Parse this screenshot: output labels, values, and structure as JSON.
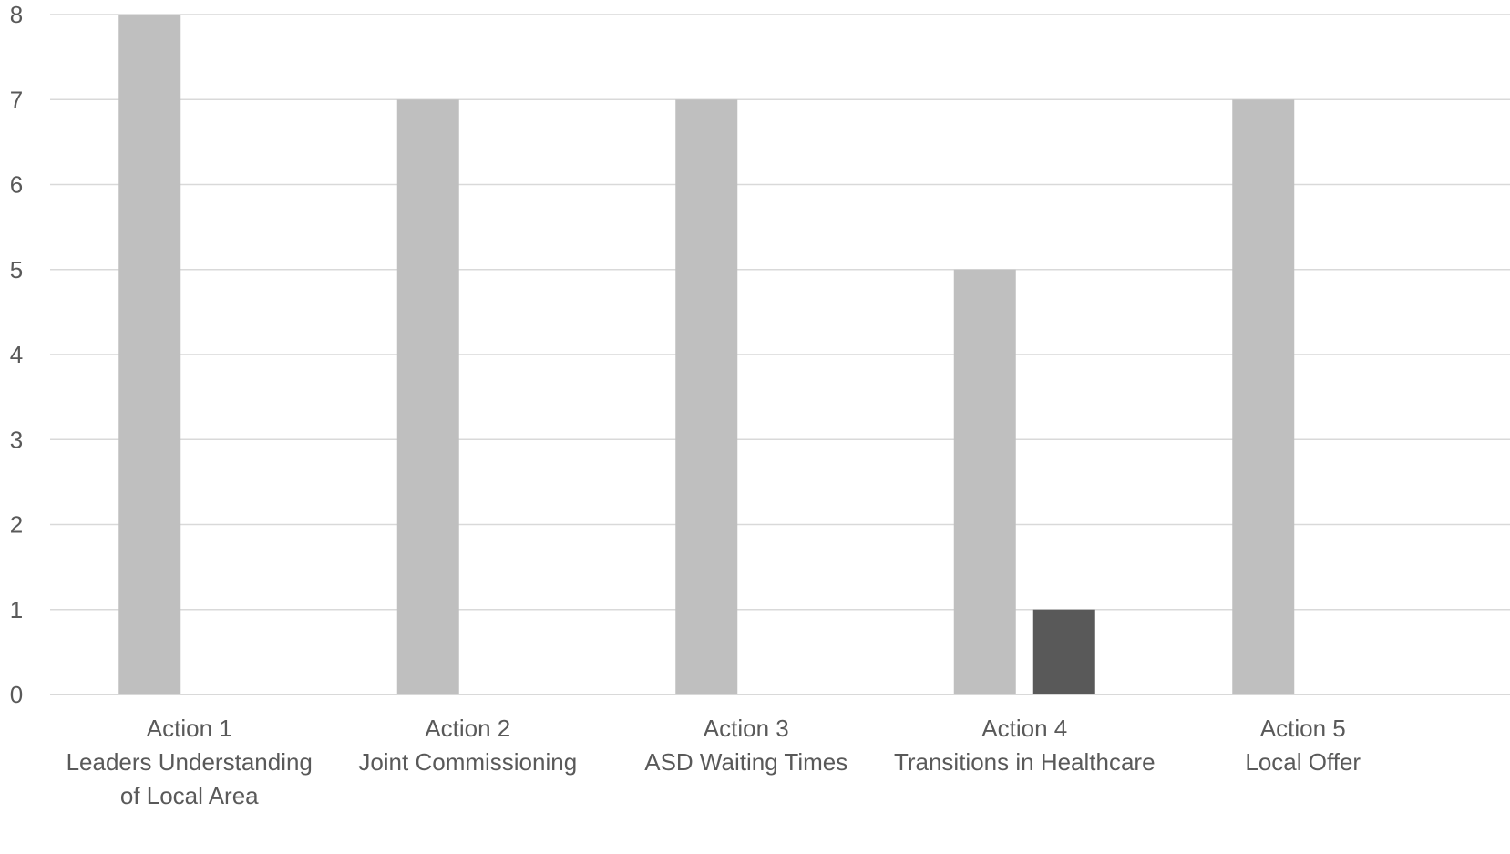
{
  "chart_data": {
    "type": "bar",
    "title": "",
    "xlabel": "",
    "ylabel": "",
    "ylim": [
      0,
      8
    ],
    "yticks": [
      0,
      1,
      2,
      3,
      4,
      5,
      6,
      7,
      8
    ],
    "grid": true,
    "categories": [
      [
        "Action 1",
        "Leaders Understanding",
        "of Local Area"
      ],
      [
        "Action 2",
        "Joint Commissioning"
      ],
      [
        "Action 3",
        "ASD Waiting Times"
      ],
      [
        "Action 4",
        "Transitions in Healthcare"
      ],
      [
        "Action 5",
        "Local Offer"
      ]
    ],
    "series": [
      {
        "color": "#bfbfbf",
        "values": [
          8,
          7,
          7,
          5,
          7
        ]
      },
      {
        "color": "#595959",
        "values": [
          0,
          0,
          0,
          1,
          0
        ]
      }
    ]
  }
}
